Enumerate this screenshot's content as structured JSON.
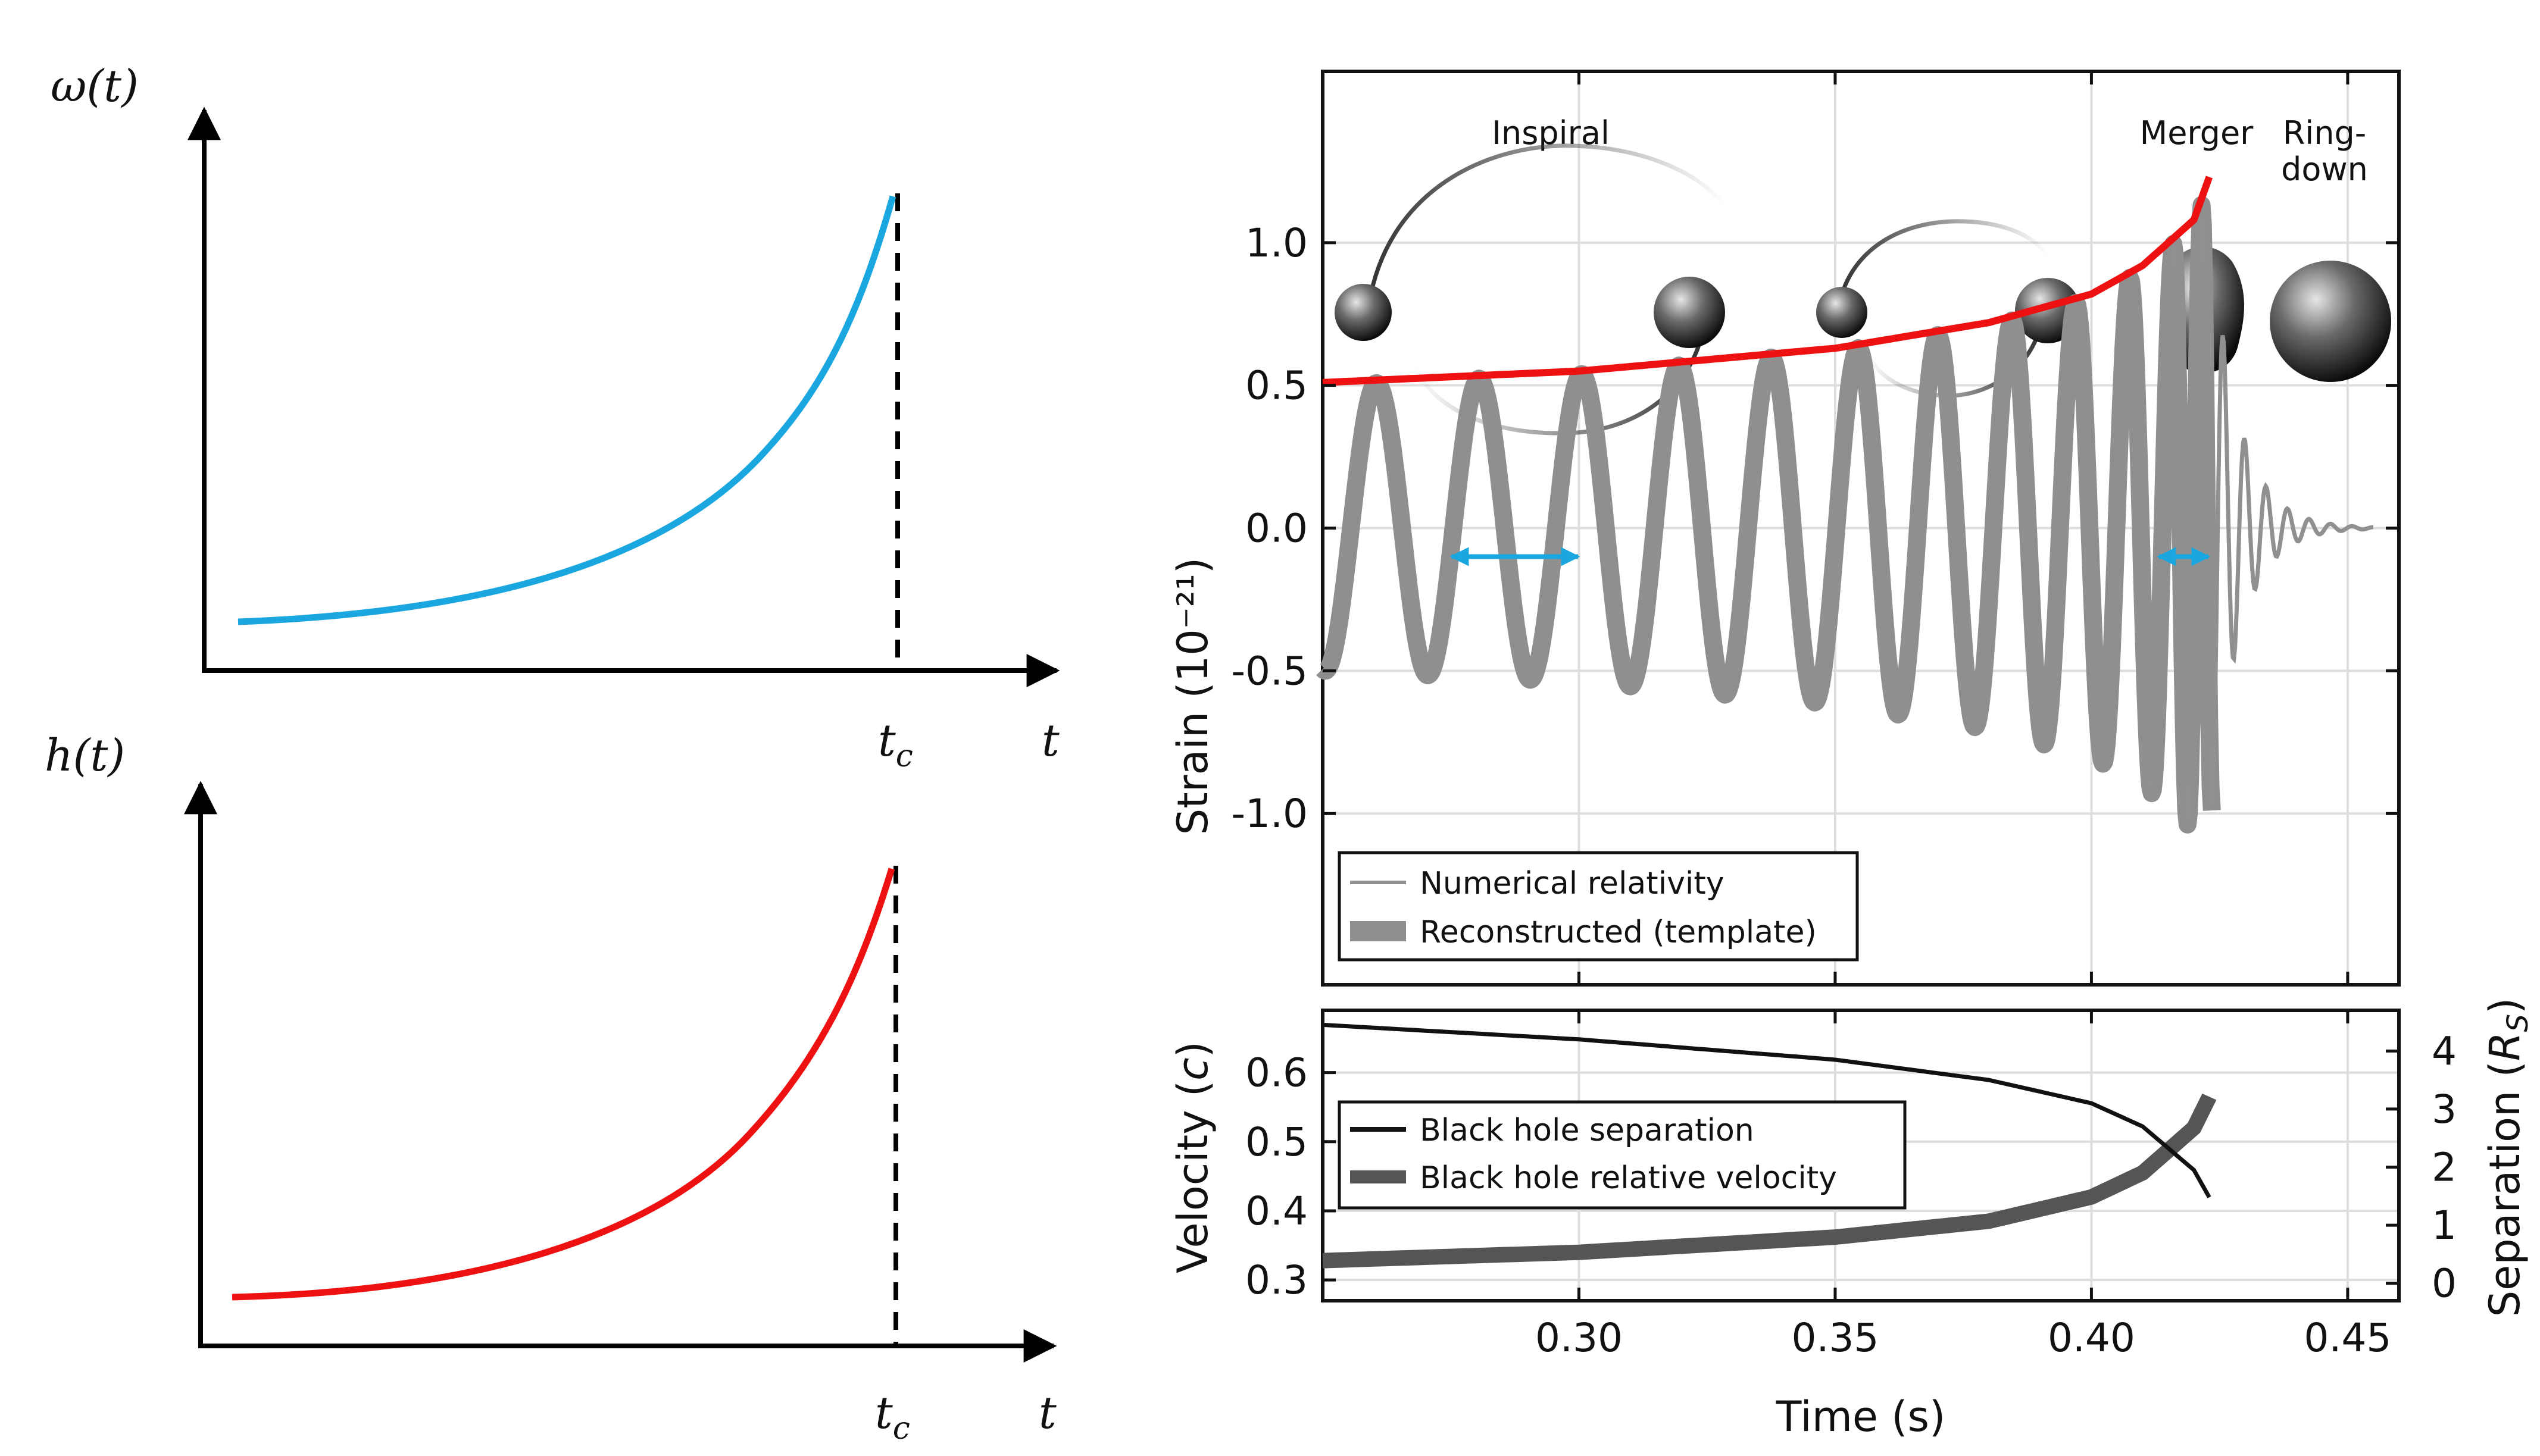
{
  "left_panels": {
    "top": {
      "ylabel_base": "ω",
      "ylabel_arg": "(t)",
      "xlabel": "t",
      "tc_base": "t",
      "tc_sub": "c",
      "curve_color": "#1aa7e0"
    },
    "bottom": {
      "ylabel_base": "h",
      "ylabel_arg": "(t)",
      "xlabel": "t",
      "tc_base": "t",
      "tc_sub": "c",
      "curve_color": "#ee1111"
    }
  },
  "stages": {
    "inspiral": "Inspiral",
    "merger": "Merger",
    "ringdown_1": "Ring-",
    "ringdown_2": "down"
  },
  "chart_data": [
    {
      "type": "line",
      "panel": "strain",
      "ylabel": "Strain (10⁻²¹)",
      "ytick_labels": [
        "1.0",
        "0.5",
        "0.0",
        "-0.5",
        "-1.0"
      ],
      "yticks": [
        1.0,
        0.5,
        0.0,
        -0.5,
        -1.0
      ],
      "ylim": [
        -1.6,
        1.6
      ],
      "xlim": [
        0.25,
        0.46
      ],
      "xticks": [
        0.3,
        0.35,
        0.4,
        0.45
      ],
      "grid": true,
      "legend": {
        "placement": "bottom-left",
        "entries": [
          "Numerical relativity",
          "Reconstructed (template)"
        ]
      },
      "series": [
        {
          "name": "Numerical relativity",
          "color": "#909090"
        },
        {
          "name": "Reconstructed (template)",
          "color": "#8f8f8f"
        }
      ],
      "envelope": {
        "color": "#ee1111",
        "x": [
          0.25,
          0.3,
          0.35,
          0.38,
          0.4,
          0.41,
          0.42,
          0.423
        ],
        "y": [
          0.51,
          0.55,
          0.63,
          0.72,
          0.82,
          0.92,
          1.08,
          1.23
        ]
      },
      "period_markers": [
        {
          "x1": 0.274,
          "x2": 0.301,
          "y": -0.1,
          "color": "#1aa7e0"
        },
        {
          "x1": 0.412,
          "x2": 0.424,
          "y": -0.1,
          "color": "#1aa7e0"
        }
      ]
    },
    {
      "type": "line",
      "panel": "velocity",
      "xlabel": "Time (s)",
      "xtick_labels": [
        "0.30",
        "0.35",
        "0.40",
        "0.45"
      ],
      "xticks": [
        0.3,
        0.35,
        0.4,
        0.45
      ],
      "xlim": [
        0.25,
        0.46
      ],
      "ylabel_left": "Velocity (c)",
      "ylabel_left_base": "Velocity (",
      "ylabel_left_unit": "c",
      "ylabel_left_close": ")",
      "ytick_labels_left": [
        "0.6",
        "0.5",
        "0.4",
        "0.3"
      ],
      "yticks_left": [
        0.6,
        0.5,
        0.4,
        0.3
      ],
      "ylim_left": [
        0.27,
        0.69
      ],
      "ylabel_right": "Separation (Rs)",
      "ylabel_right_base": "Separation (",
      "ylabel_right_unit": "R",
      "ylabel_right_sub": "S",
      "ylabel_right_close": ")",
      "ytick_labels_right": [
        "4",
        "3",
        "2",
        "1",
        "0"
      ],
      "yticks_right": [
        4,
        3,
        2,
        1,
        0
      ],
      "ylim_right": [
        -0.3,
        4.7
      ],
      "grid": true,
      "legend": {
        "placement": "top-left",
        "entries": [
          "Black hole separation",
          "Black hole relative velocity"
        ]
      },
      "series": [
        {
          "name": "Black hole separation",
          "axis": "right",
          "color": "#111111",
          "x": [
            0.25,
            0.3,
            0.35,
            0.38,
            0.4,
            0.41,
            0.42,
            0.423
          ],
          "y": [
            4.45,
            4.2,
            3.85,
            3.5,
            3.1,
            2.7,
            1.95,
            1.48
          ]
        },
        {
          "name": "Black hole relative velocity",
          "axis": "left",
          "color": "#555555",
          "x": [
            0.25,
            0.3,
            0.35,
            0.38,
            0.4,
            0.41,
            0.42,
            0.423
          ],
          "y": [
            0.328,
            0.34,
            0.362,
            0.385,
            0.42,
            0.455,
            0.52,
            0.565
          ]
        }
      ]
    }
  ]
}
